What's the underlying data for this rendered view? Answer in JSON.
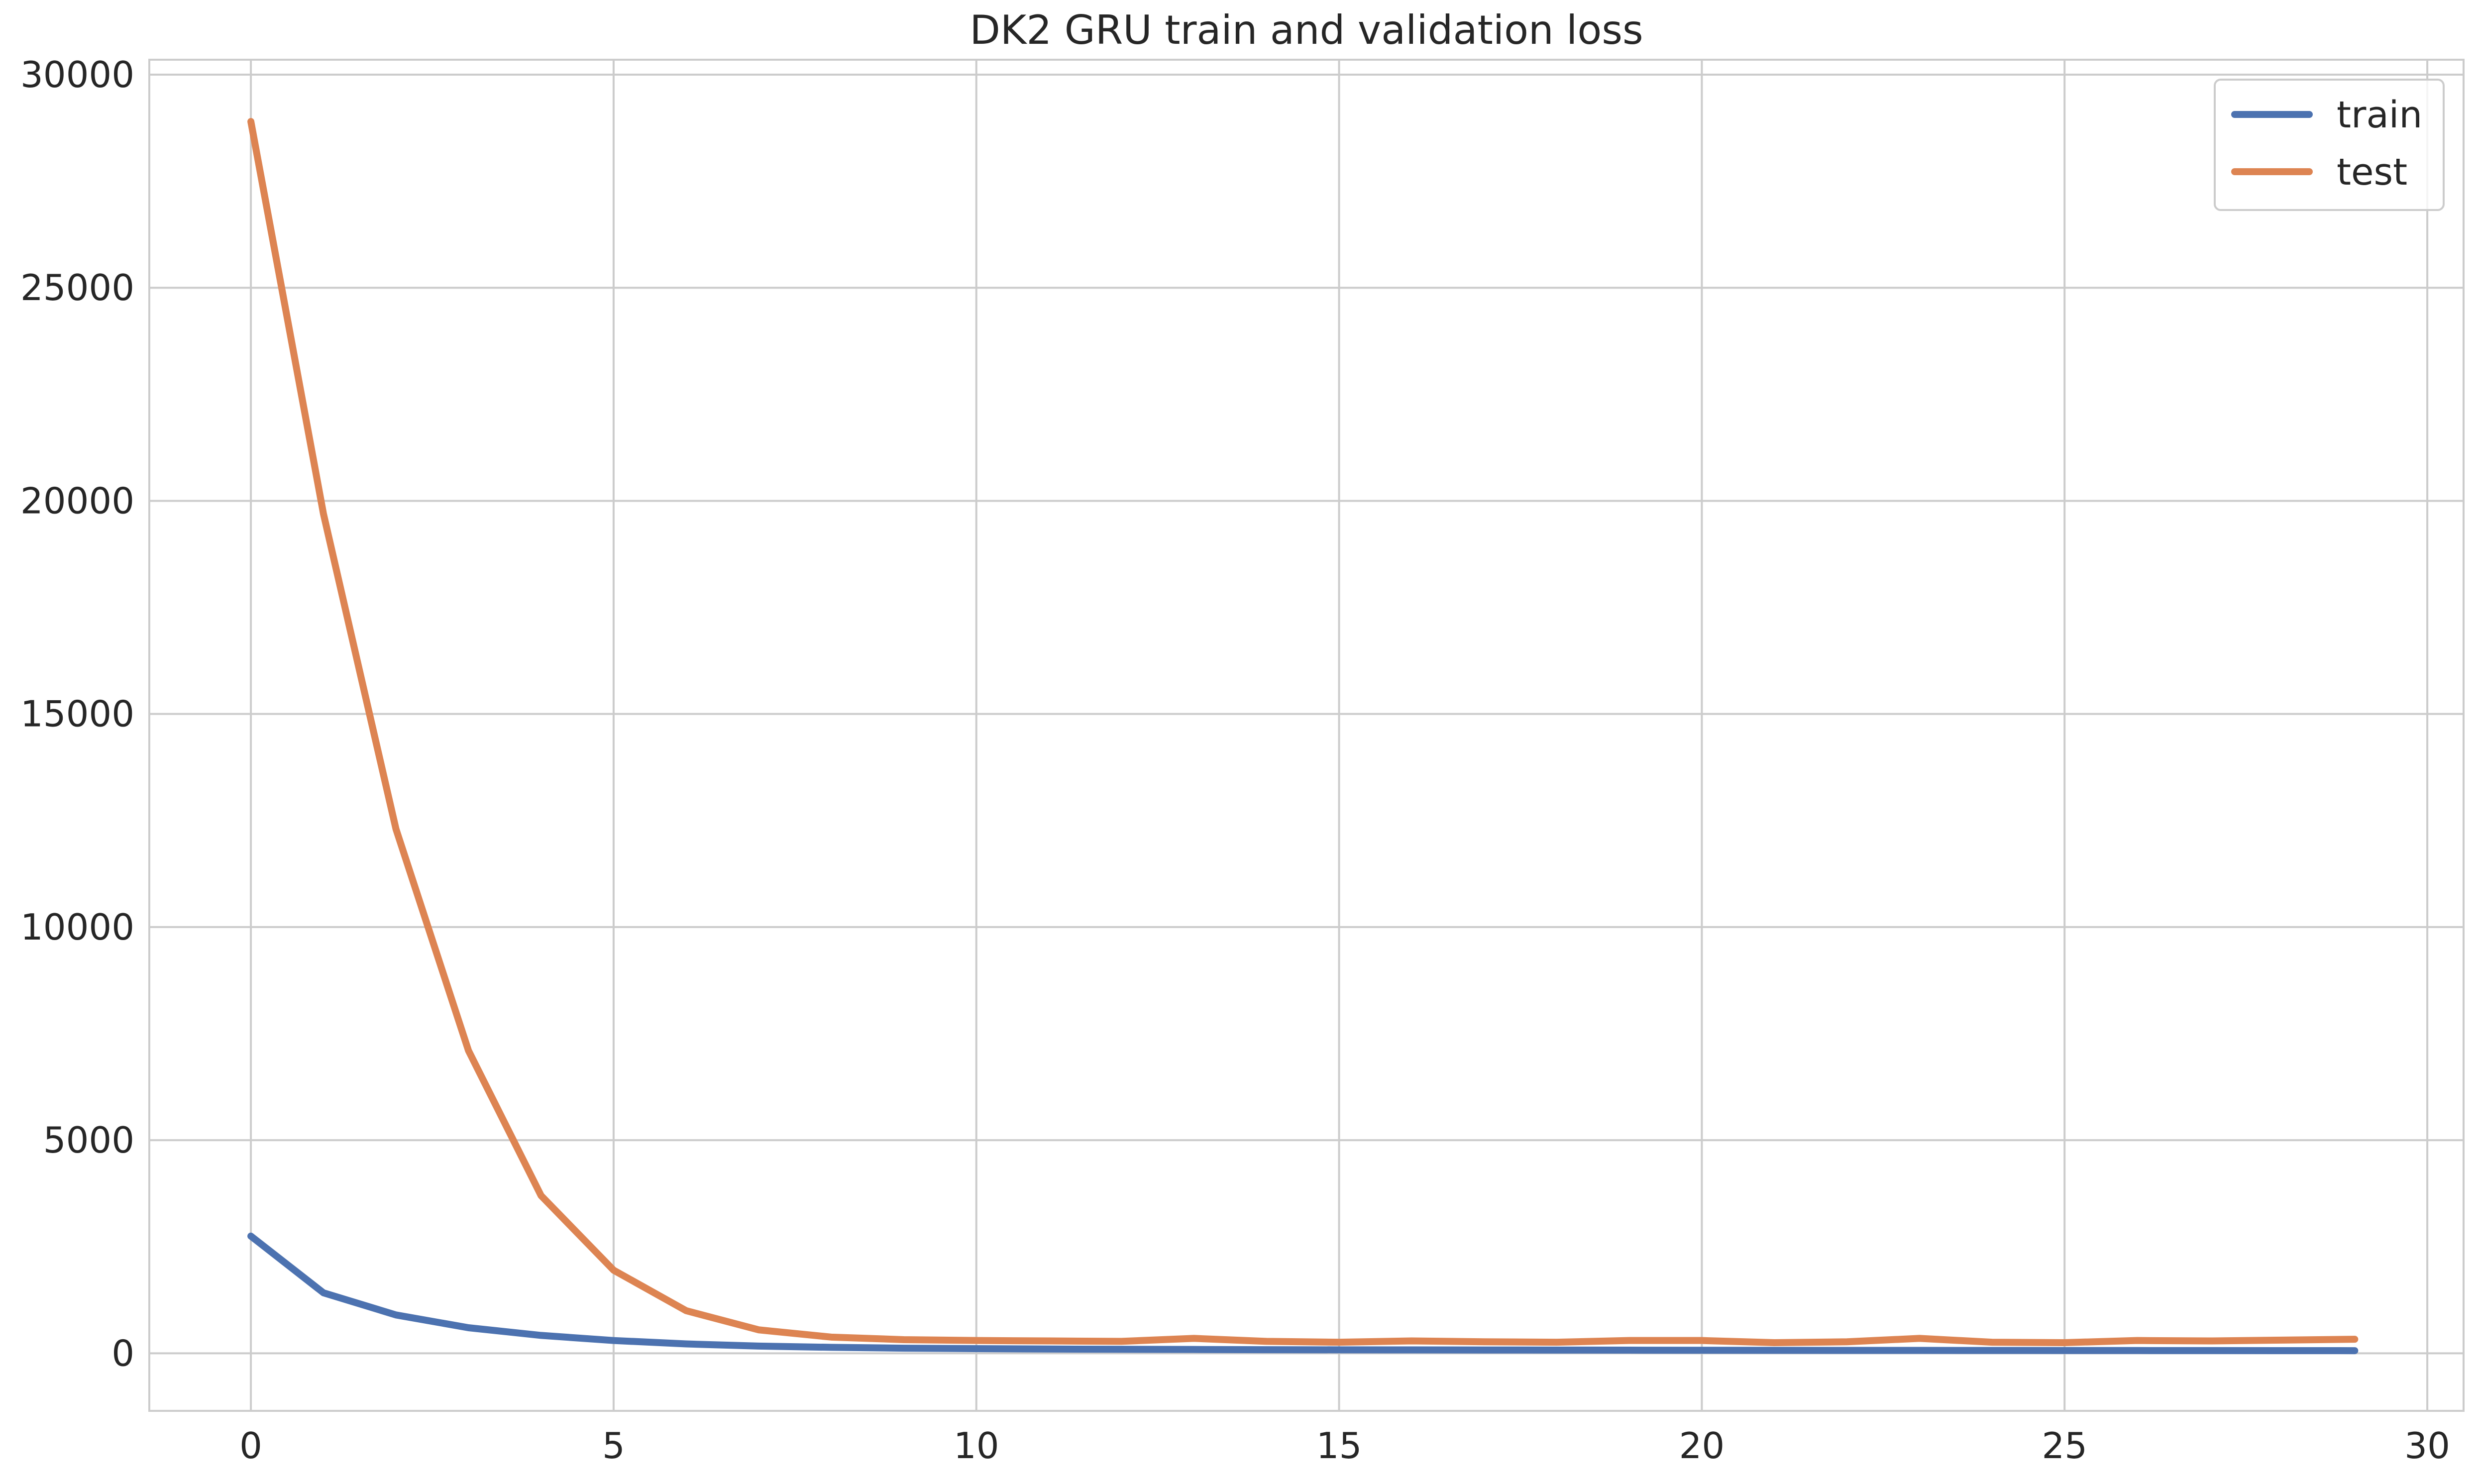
{
  "colors": {
    "train": "#4c72b0",
    "test": "#dd8452",
    "grid": "#cccccc",
    "text": "#262626"
  },
  "chart_data": {
    "type": "line",
    "title": "DK2 GRU train and validation loss",
    "xlabel": "",
    "ylabel": "",
    "xlim": [
      -1.4,
      30.5
    ],
    "ylim": [
      -1350,
      30350
    ],
    "xticks": [
      0,
      5,
      10,
      15,
      20,
      25,
      30
    ],
    "yticks": [
      0,
      5000,
      10000,
      15000,
      20000,
      25000,
      30000
    ],
    "grid": true,
    "legend_position": "top-right",
    "x": [
      0,
      1,
      2,
      3,
      4,
      5,
      6,
      7,
      8,
      9,
      10,
      11,
      12,
      13,
      14,
      15,
      16,
      17,
      18,
      19,
      20,
      21,
      22,
      23,
      24,
      25,
      26,
      27,
      28,
      29
    ],
    "series": [
      {
        "name": "train",
        "color": "#4c72b0",
        "values": [
          2750,
          1420,
          900,
          600,
          420,
          300,
          220,
          170,
          140,
          120,
          110,
          100,
          95,
          90,
          85,
          82,
          80,
          78,
          76,
          74,
          72,
          70,
          69,
          68,
          67,
          66,
          65,
          64,
          63,
          62
        ]
      },
      {
        "name": "test",
        "color": "#dd8452",
        "values": [
          28900,
          19700,
          12300,
          7100,
          3700,
          1950,
          1000,
          550,
          380,
          320,
          300,
          290,
          280,
          350,
          280,
          260,
          290,
          270,
          260,
          300,
          300,
          250,
          270,
          350,
          260,
          250,
          300,
          290,
          310,
          330
        ]
      }
    ]
  }
}
